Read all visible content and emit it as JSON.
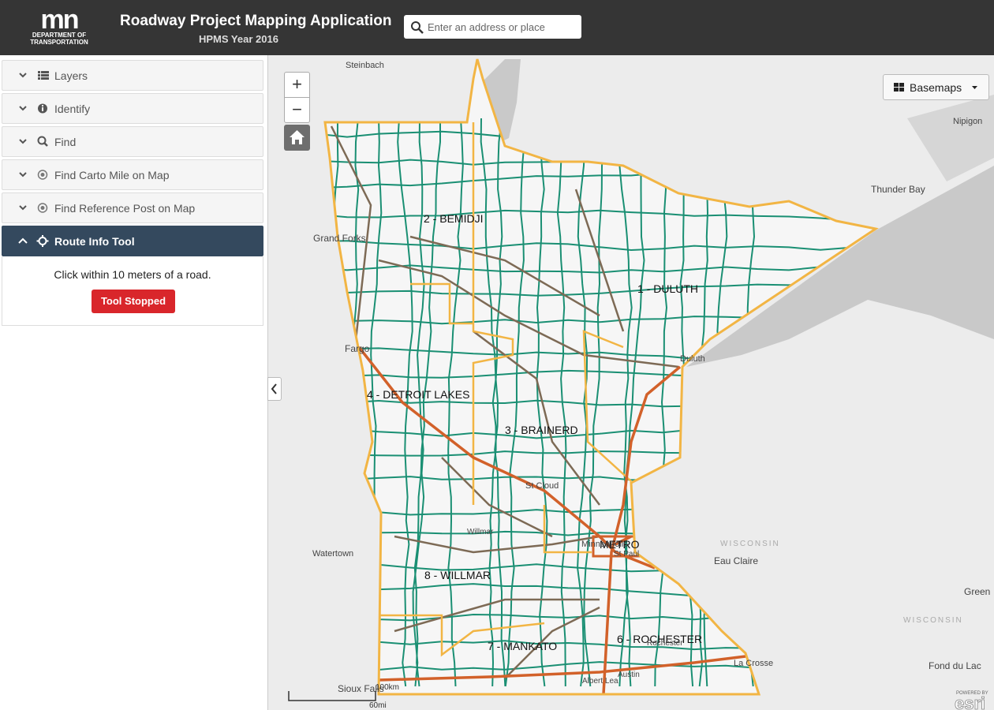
{
  "header": {
    "logo_text": "mn",
    "logo_caption": [
      "DEPARTMENT OF",
      "TRANSPORTATION"
    ],
    "title": "Roadway Project Mapping Application",
    "subtitle": "HPMS Year 2016",
    "search_placeholder": "Enter an address or place"
  },
  "sidebar": {
    "panels": [
      "Layers",
      "Identify",
      "Find",
      "Find Carto Mile on Map",
      "Find Reference Post on Map",
      "Route Info Tool"
    ],
    "instructions": "Click within 10 meters of a road.",
    "button": "Tool Stopped"
  },
  "map": {
    "zoom_in": "+",
    "zoom_out": "−",
    "basemaps_button": "Basemaps",
    "districts": [
      "2 - BEMIDJI",
      "1 - DULUTH",
      "4 - DETROIT LAKES",
      "3 - BRAINERD",
      "8 - WILLMAR",
      "7 - MANKATO",
      "6 - ROCHESTER",
      "METRO"
    ],
    "places": [
      "Steinbach",
      "Nipigon",
      "Thunder Bay",
      "Grand Forks",
      "Fargo",
      "Duluth",
      "St Cloud",
      "Minneapolis",
      "St Paul",
      "Watertown",
      "Eau Claire",
      "WISCONSIN",
      "Green",
      "WISCONSIN",
      "Fond du Lac",
      "La Crosse",
      "Rochester",
      "Albert Lea",
      "Austin",
      "Sioux Falls",
      "Willmar"
    ],
    "scale": {
      "km": "100km",
      "mi": "60mi"
    },
    "attribution": {
      "powered_by": "POWERED BY",
      "brand": "esri"
    }
  }
}
